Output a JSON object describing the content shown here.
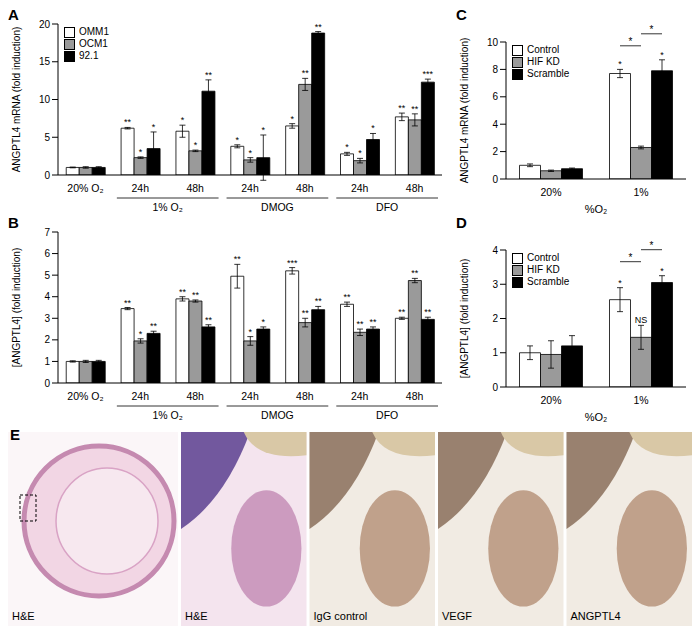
{
  "chart_data": [
    {
      "panel": "A",
      "type": "bar",
      "y_label": "ANGPTL4 mRNA (fold induction)",
      "legend": "top-left",
      "categories": [
        "20% O₂",
        "24h",
        "48h",
        "24h",
        "48h",
        "24h",
        "48h"
      ],
      "category_groups": [
        null,
        "1% O₂",
        "1% O₂",
        "DMOG",
        "DMOG",
        "DFO",
        "DFO"
      ],
      "ylim": [
        0,
        20
      ],
      "yticks": [
        0,
        5,
        10,
        15,
        20
      ],
      "series": [
        {
          "name": "OMM1",
          "color": "#ffffff",
          "values": [
            1,
            6.2,
            5.8,
            3.8,
            6.5,
            2.8,
            7.7
          ],
          "errors": [
            0.05,
            0.1,
            0.8,
            0.2,
            0.3,
            0.2,
            0.5
          ],
          "significance": [
            null,
            "**",
            "*",
            "*",
            "*",
            "*",
            "**"
          ]
        },
        {
          "name": "OCM1",
          "color": "#9a9a9a",
          "values": [
            1,
            2.3,
            3.2,
            2.0,
            12.0,
            1.9,
            7.3
          ],
          "errors": [
            0.1,
            0.1,
            0.1,
            0.3,
            0.8,
            0.3,
            0.8
          ],
          "significance": [
            null,
            "*",
            "*",
            "*",
            "**",
            "*",
            "**"
          ]
        },
        {
          "name": "92.1",
          "color": "#000000",
          "values": [
            1,
            3.5,
            11.1,
            2.3,
            18.8,
            4.7,
            12.3
          ],
          "errors": [
            0.1,
            2.2,
            1.5,
            3.0,
            0.2,
            0.8,
            0.4
          ],
          "significance": [
            null,
            "*",
            "**",
            "*",
            "**",
            "*",
            "***"
          ]
        }
      ]
    },
    {
      "panel": "B",
      "type": "bar",
      "y_label": "[ANGPTL4] (fold induction)",
      "categories": [
        "20% O₂",
        "24h",
        "48h",
        "24h",
        "48h",
        "24h",
        "48h"
      ],
      "category_groups": [
        null,
        "1% O₂",
        "1% O₂",
        "DMOG",
        "DMOG",
        "DFO",
        "DFO"
      ],
      "ylim": [
        0,
        7
      ],
      "yticks": [
        0,
        1,
        2,
        3,
        4,
        5,
        6,
        7
      ],
      "series": [
        {
          "name": "OMM1",
          "color": "#ffffff",
          "values": [
            1,
            3.45,
            3.9,
            4.95,
            5.2,
            3.65,
            3.0
          ],
          "errors": [
            0.03,
            0.05,
            0.1,
            0.55,
            0.15,
            0.1,
            0.05
          ],
          "significance": [
            null,
            "**",
            "**",
            "**",
            "***",
            "**",
            "**"
          ]
        },
        {
          "name": "OCM1",
          "color": "#9a9a9a",
          "values": [
            1,
            1.95,
            3.8,
            1.95,
            2.8,
            2.35,
            4.75
          ],
          "errors": [
            0.05,
            0.1,
            0.05,
            0.2,
            0.2,
            0.15,
            0.1
          ],
          "significance": [
            null,
            "*",
            "**",
            "*",
            "**",
            "**",
            "**"
          ]
        },
        {
          "name": "92.1",
          "color": "#000000",
          "values": [
            1,
            2.3,
            2.6,
            2.5,
            3.4,
            2.5,
            2.95
          ],
          "errors": [
            0.05,
            0.1,
            0.1,
            0.1,
            0.15,
            0.1,
            0.1
          ],
          "significance": [
            null,
            "**",
            "**",
            "*",
            "**",
            "**",
            "**"
          ]
        }
      ]
    },
    {
      "panel": "C",
      "type": "bar",
      "y_label": "ANGPTL4 mRNA (fold induction)",
      "x_label": "%O₂",
      "legend": "top-left",
      "categories": [
        "20%",
        "1%"
      ],
      "ylim": [
        0,
        10
      ],
      "yticks": [
        0,
        2,
        4,
        6,
        8,
        10
      ],
      "series": [
        {
          "name": "Control",
          "color": "#ffffff",
          "values": [
            1.0,
            7.7
          ],
          "errors": [
            0.1,
            0.3
          ],
          "significance": [
            null,
            "*"
          ]
        },
        {
          "name": "HIF KD",
          "color": "#9a9a9a",
          "values": [
            0.6,
            2.3
          ],
          "errors": [
            0.05,
            0.1
          ],
          "significance": [
            null,
            null
          ]
        },
        {
          "name": "Scramble",
          "color": "#000000",
          "values": [
            0.75,
            7.9
          ],
          "errors": [
            0.05,
            0.8
          ],
          "significance": [
            null,
            "*"
          ]
        }
      ],
      "comparisons": [
        {
          "category": "1%",
          "from": "Control",
          "to": "HIF KD",
          "label": "*"
        },
        {
          "category": "1%",
          "from": "HIF KD",
          "to": "Scramble",
          "label": "*"
        }
      ]
    },
    {
      "panel": "D",
      "type": "bar",
      "y_label": "[ANGPTL4] (fold induction)",
      "x_label": "%O₂",
      "legend": "top-left",
      "categories": [
        "20%",
        "1%"
      ],
      "ylim": [
        0,
        4
      ],
      "yticks": [
        0,
        1,
        2,
        3,
        4
      ],
      "series": [
        {
          "name": "Control",
          "color": "#ffffff",
          "values": [
            1.0,
            2.55
          ],
          "errors": [
            0.2,
            0.35
          ],
          "significance": [
            null,
            "*"
          ]
        },
        {
          "name": "HIF KD",
          "color": "#9a9a9a",
          "values": [
            0.95,
            1.45
          ],
          "errors": [
            0.4,
            0.35
          ],
          "significance": [
            null,
            "NS"
          ]
        },
        {
          "name": "Scramble",
          "color": "#000000",
          "values": [
            1.2,
            3.05
          ],
          "errors": [
            0.3,
            0.2
          ],
          "significance": [
            null,
            "*"
          ]
        }
      ],
      "comparisons": [
        {
          "category": "1%",
          "from": "Control",
          "to": "HIF KD",
          "label": "*"
        },
        {
          "category": "1%",
          "from": "HIF KD",
          "to": "Scramble",
          "label": "*"
        }
      ]
    }
  ],
  "image_panel": {
    "panel": "E",
    "images": [
      "H&E",
      "H&E",
      "IgG control",
      "VEGF",
      "ANGPTL4"
    ]
  }
}
